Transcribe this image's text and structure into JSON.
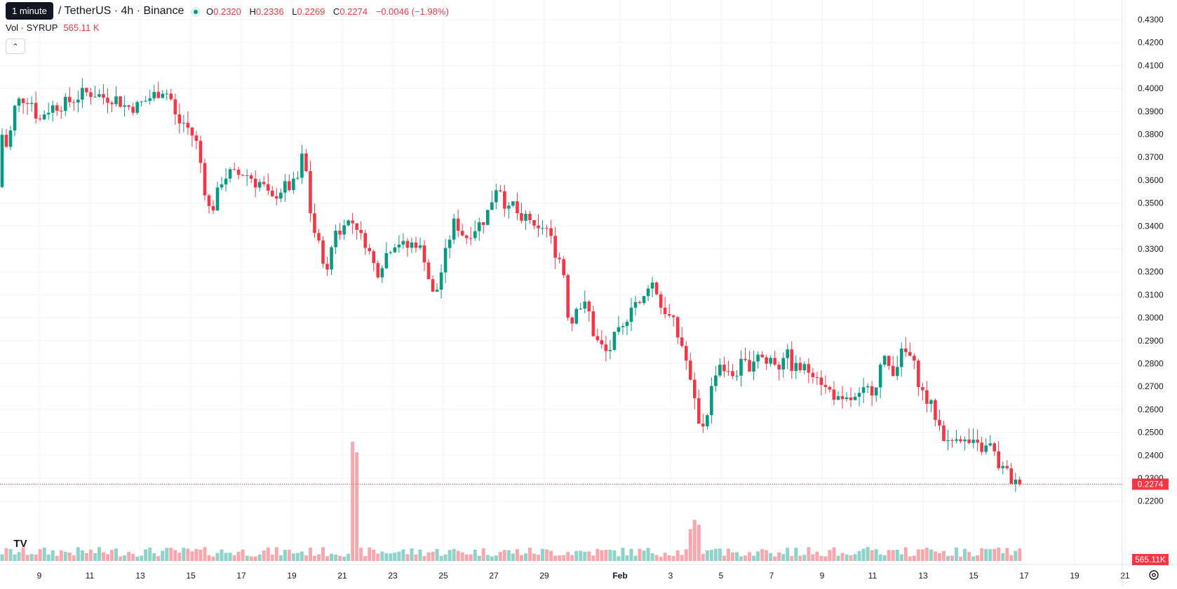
{
  "tooltip": "1 minute",
  "symbol_text": "/ TetherUS · 4h · Binance",
  "ohlc": {
    "o_label": "O",
    "o": "0.2320",
    "h_label": "H",
    "h": "0.2336",
    "l_label": "L",
    "l": "0.2269",
    "c_label": "C",
    "c": "0.2274",
    "change": "−0.0046 (−1.98%)"
  },
  "volume": {
    "label": "Vol · SYRUP",
    "value": "565.11 K"
  },
  "colors": {
    "up": "#089981",
    "down": "#f23645",
    "up_vol": "#8ed2c8",
    "down_vol": "#f7a8ae",
    "grid": "#f0f3fa",
    "axis_text": "#131722"
  },
  "icons": {
    "collapse": "chevron-up-icon",
    "logo": "tradingview-logo-icon",
    "settings": "gear-icon"
  },
  "chart_data": {
    "type": "candlestick",
    "y_ticks": [
      "0.4300",
      "0.4200",
      "0.4100",
      "0.4000",
      "0.3900",
      "0.3800",
      "0.3700",
      "0.3600",
      "0.3500",
      "0.3400",
      "0.3300",
      "0.3200",
      "0.3100",
      "0.3000",
      "0.2900",
      "0.2800",
      "0.2700",
      "0.2600",
      "0.2500",
      "0.2400",
      "0.2300",
      "0.2200"
    ],
    "x_ticks": [
      "9",
      "11",
      "13",
      "15",
      "17",
      "19",
      "21",
      "23",
      "25",
      "27",
      "29",
      "Feb",
      "3",
      "5",
      "7",
      "9",
      "11",
      "13",
      "15",
      "17",
      "19",
      "21"
    ],
    "ylim": [
      0.2165,
      0.4335
    ],
    "last_price": "0.2274",
    "last_volume": "565.11K",
    "price_path": [
      [
        0,
        0.357
      ],
      [
        4,
        0.357
      ],
      [
        8,
        0.381
      ],
      [
        14,
        0.374
      ],
      [
        20,
        0.379
      ],
      [
        26,
        0.391
      ],
      [
        34,
        0.395
      ],
      [
        43,
        0.396
      ],
      [
        52,
        0.394
      ],
      [
        61,
        0.385
      ],
      [
        70,
        0.39
      ],
      [
        81,
        0.392
      ],
      [
        95,
        0.393
      ],
      [
        110,
        0.395
      ],
      [
        125,
        0.398
      ],
      [
        140,
        0.398
      ],
      [
        155,
        0.396
      ],
      [
        170,
        0.396
      ],
      [
        185,
        0.392
      ],
      [
        200,
        0.392
      ],
      [
        215,
        0.395
      ],
      [
        230,
        0.398
      ],
      [
        240,
        0.4
      ],
      [
        250,
        0.395
      ],
      [
        258,
        0.385
      ],
      [
        268,
        0.385
      ],
      [
        278,
        0.381
      ],
      [
        288,
        0.375
      ],
      [
        298,
        0.356
      ],
      [
        306,
        0.345
      ],
      [
        315,
        0.353
      ],
      [
        322,
        0.36
      ],
      [
        332,
        0.363
      ],
      [
        342,
        0.362
      ],
      [
        352,
        0.363
      ],
      [
        362,
        0.362
      ],
      [
        370,
        0.359
      ],
      [
        378,
        0.359
      ],
      [
        386,
        0.355
      ],
      [
        392,
        0.35
      ],
      [
        402,
        0.355
      ],
      [
        412,
        0.357
      ],
      [
        422,
        0.357
      ],
      [
        430,
        0.36
      ],
      [
        436,
        0.37
      ],
      [
        442,
        0.365
      ],
      [
        446,
        0.35
      ],
      [
        456,
        0.335
      ],
      [
        466,
        0.327
      ],
      [
        472,
        0.318
      ],
      [
        478,
        0.33
      ],
      [
        484,
        0.34
      ],
      [
        490,
        0.335
      ],
      [
        498,
        0.345
      ],
      [
        505,
        0.34
      ],
      [
        512,
        0.343
      ],
      [
        520,
        0.335
      ],
      [
        528,
        0.333
      ],
      [
        536,
        0.325
      ],
      [
        544,
        0.32
      ],
      [
        552,
        0.325
      ],
      [
        560,
        0.33
      ],
      [
        568,
        0.333
      ],
      [
        576,
        0.333
      ],
      [
        584,
        0.33
      ],
      [
        592,
        0.332
      ],
      [
        600,
        0.333
      ],
      [
        608,
        0.328
      ],
      [
        614,
        0.325
      ],
      [
        620,
        0.31
      ],
      [
        626,
        0.31
      ],
      [
        632,
        0.315
      ],
      [
        638,
        0.325
      ],
      [
        644,
        0.33
      ],
      [
        650,
        0.34
      ],
      [
        656,
        0.342
      ],
      [
        662,
        0.338
      ],
      [
        670,
        0.335
      ],
      [
        678,
        0.338
      ],
      [
        686,
        0.34
      ],
      [
        694,
        0.342
      ],
      [
        700,
        0.345
      ],
      [
        706,
        0.35
      ],
      [
        712,
        0.357
      ],
      [
        718,
        0.358
      ],
      [
        724,
        0.352
      ],
      [
        730,
        0.345
      ],
      [
        736,
        0.35
      ],
      [
        742,
        0.348
      ],
      [
        748,
        0.338
      ],
      [
        754,
        0.344
      ],
      [
        760,
        0.345
      ],
      [
        766,
        0.338
      ],
      [
        772,
        0.336
      ],
      [
        778,
        0.34
      ],
      [
        784,
        0.34
      ],
      [
        790,
        0.335
      ],
      [
        796,
        0.33
      ],
      [
        802,
        0.326
      ],
      [
        808,
        0.325
      ],
      [
        814,
        0.305
      ],
      [
        820,
        0.295
      ],
      [
        826,
        0.307
      ],
      [
        832,
        0.305
      ],
      [
        838,
        0.305
      ],
      [
        844,
        0.305
      ],
      [
        850,
        0.295
      ],
      [
        856,
        0.29
      ],
      [
        862,
        0.288
      ],
      [
        868,
        0.285
      ],
      [
        874,
        0.285
      ],
      [
        880,
        0.29
      ],
      [
        886,
        0.293
      ],
      [
        892,
        0.293
      ],
      [
        898,
        0.298
      ],
      [
        904,
        0.306
      ],
      [
        910,
        0.308
      ],
      [
        916,
        0.305
      ],
      [
        922,
        0.305
      ],
      [
        928,
        0.315
      ],
      [
        934,
        0.315
      ],
      [
        940,
        0.315
      ],
      [
        946,
        0.305
      ],
      [
        952,
        0.305
      ],
      [
        958,
        0.3
      ],
      [
        964,
        0.3
      ],
      [
        970,
        0.293
      ],
      [
        976,
        0.29
      ],
      [
        982,
        0.285
      ],
      [
        988,
        0.275
      ],
      [
        994,
        0.265
      ],
      [
        1000,
        0.258
      ],
      [
        1006,
        0.252
      ],
      [
        1012,
        0.256
      ],
      [
        1018,
        0.265
      ],
      [
        1024,
        0.275
      ],
      [
        1030,
        0.28
      ],
      [
        1036,
        0.28
      ],
      [
        1042,
        0.275
      ],
      [
        1048,
        0.275
      ],
      [
        1054,
        0.275
      ],
      [
        1060,
        0.279
      ],
      [
        1066,
        0.28
      ],
      [
        1072,
        0.279
      ],
      [
        1078,
        0.28
      ],
      [
        1084,
        0.285
      ],
      [
        1090,
        0.285
      ],
      [
        1096,
        0.28
      ],
      [
        1102,
        0.28
      ],
      [
        1108,
        0.285
      ],
      [
        1114,
        0.276
      ],
      [
        1120,
        0.283
      ],
      [
        1126,
        0.286
      ],
      [
        1132,
        0.28
      ],
      [
        1138,
        0.278
      ],
      [
        1144,
        0.278
      ],
      [
        1150,
        0.278
      ],
      [
        1156,
        0.277
      ],
      [
        1162,
        0.277
      ],
      [
        1168,
        0.277
      ],
      [
        1174,
        0.275
      ],
      [
        1180,
        0.27
      ],
      [
        1186,
        0.268
      ],
      [
        1192,
        0.268
      ],
      [
        1198,
        0.265
      ],
      [
        1204,
        0.262
      ],
      [
        1210,
        0.262
      ],
      [
        1216,
        0.265
      ],
      [
        1222,
        0.264
      ],
      [
        1228,
        0.264
      ],
      [
        1234,
        0.266
      ],
      [
        1240,
        0.268
      ],
      [
        1246,
        0.269
      ],
      [
        1252,
        0.269
      ],
      [
        1258,
        0.275
      ],
      [
        1264,
        0.282
      ],
      [
        1270,
        0.28
      ],
      [
        1276,
        0.278
      ],
      [
        1282,
        0.277
      ],
      [
        1288,
        0.283
      ],
      [
        1294,
        0.285
      ],
      [
        1300,
        0.284
      ],
      [
        1306,
        0.282
      ],
      [
        1312,
        0.276
      ],
      [
        1318,
        0.27
      ],
      [
        1324,
        0.265
      ],
      [
        1330,
        0.263
      ],
      [
        1336,
        0.26
      ],
      [
        1342,
        0.255
      ],
      [
        1348,
        0.251
      ],
      [
        1354,
        0.247
      ],
      [
        1360,
        0.243
      ],
      [
        1366,
        0.249
      ],
      [
        1372,
        0.25
      ],
      [
        1378,
        0.247
      ],
      [
        1384,
        0.245
      ],
      [
        1390,
        0.245
      ],
      [
        1396,
        0.244
      ],
      [
        1402,
        0.243
      ],
      [
        1408,
        0.243
      ],
      [
        1414,
        0.243
      ],
      [
        1420,
        0.245
      ],
      [
        1426,
        0.237
      ],
      [
        1432,
        0.235
      ],
      [
        1438,
        0.233
      ],
      [
        1444,
        0.232
      ],
      [
        1450,
        0.2274
      ]
    ],
    "volume_spikes": [
      [
        500,
        170
      ],
      [
        507,
        155
      ]
    ],
    "vol_max_px": 750
  }
}
